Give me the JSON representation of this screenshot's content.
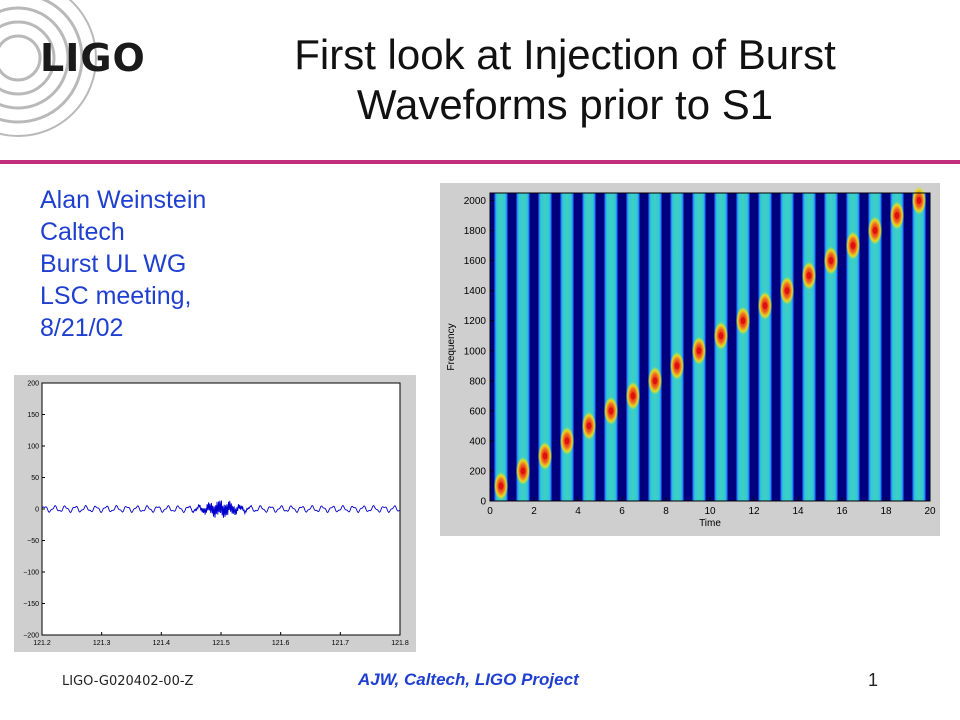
{
  "slide": {
    "logo_text": "LIGO",
    "title_line1": "First look at Injection of Burst",
    "title_line2": "Waveforms prior to S1",
    "accent_color": "#c22e7a",
    "author_color": "#1f3fd0",
    "author_lines": [
      "Alan Weinstein",
      "Caltech",
      "Burst UL WG",
      "LSC meeting,",
      "8/21/02"
    ]
  },
  "footer": {
    "doc_id": "LIGO-G020402-00-Z",
    "center_text": "AJW, Caltech, LIGO Project",
    "page_number": "1"
  },
  "chart_data": [
    {
      "type": "heatmap",
      "xlabel": "Time",
      "ylabel": "Frequency",
      "xlim": [
        0,
        20
      ],
      "ylim": [
        0,
        2050
      ],
      "xticks": [
        0,
        2,
        4,
        6,
        8,
        10,
        12,
        14,
        16,
        18,
        20
      ],
      "yticks": [
        0,
        200,
        400,
        600,
        800,
        1000,
        1200,
        1400,
        1600,
        1800,
        2000
      ],
      "bursts": {
        "time": [
          0.5,
          1.5,
          2.5,
          3.5,
          4.5,
          5.5,
          6.5,
          7.5,
          8.5,
          9.5,
          10.5,
          11.5,
          12.5,
          13.5,
          14.5,
          15.5,
          16.5,
          17.5,
          18.5,
          19.5
        ],
        "frequency": [
          100,
          200,
          300,
          400,
          500,
          600,
          700,
          800,
          900,
          1000,
          1100,
          1200,
          1300,
          1400,
          1500,
          1600,
          1700,
          1800,
          1900,
          2000
        ]
      },
      "grid": false,
      "colors": {
        "background": "#00007f",
        "band": "#3fd0c0",
        "burst": "#e01010"
      }
    },
    {
      "type": "line",
      "xlim": [
        121.2,
        121.8
      ],
      "ylim": [
        -200,
        200
      ],
      "xticks": [
        121.2,
        121.3,
        121.4,
        121.5,
        121.6,
        121.7,
        121.8
      ],
      "yticks": [
        200,
        150,
        100,
        50,
        0,
        -50,
        -100,
        -150,
        -200
      ],
      "baseline_amplitude": 4,
      "burst_center": 121.5,
      "burst_peak_amplitude": 11,
      "line_color": "#0000cc",
      "grid": false
    }
  ]
}
